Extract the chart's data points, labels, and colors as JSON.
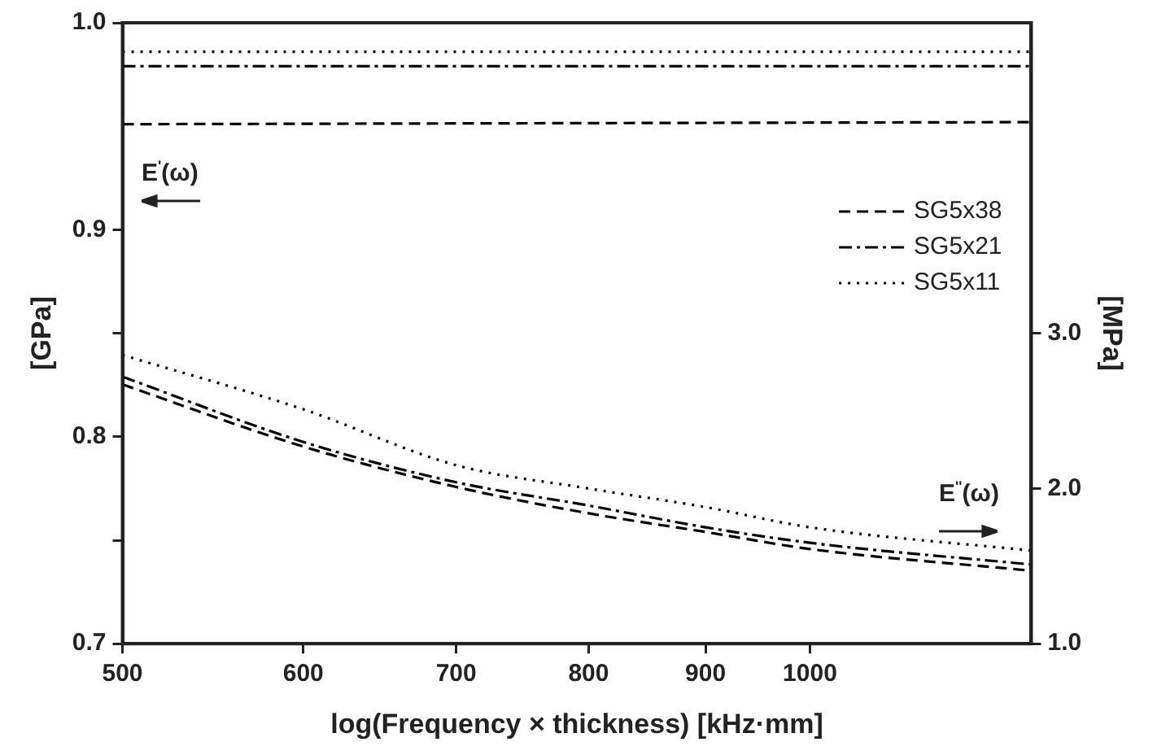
{
  "chart_data": {
    "type": "line",
    "xlabel": "log(Frequency × thickness) [kHz·mm]",
    "ylabel": "[GPa]",
    "y2label": "[MPa]",
    "log": "x",
    "xlim": [
      500,
      1250
    ],
    "xticks": [
      500,
      600,
      700,
      800,
      900,
      1000
    ],
    "ylim": [
      0.7,
      1.0
    ],
    "yticks": [
      {
        "value": 0.7,
        "label": "0.7"
      },
      {
        "value": 0.75,
        "label": null
      },
      {
        "value": 0.8,
        "label": "0.8"
      },
      {
        "value": 0.85,
        "label": null
      },
      {
        "value": 0.9,
        "label": "0.9"
      },
      {
        "value": 1.0,
        "label": "1.0"
      }
    ],
    "y2lim": [
      1,
      5
    ],
    "y2ticks": [
      {
        "value": 1,
        "label": "1.0"
      },
      {
        "value": 2,
        "label": "2.0"
      },
      {
        "value": 3,
        "label": "3.0"
      }
    ],
    "grid": false,
    "legend": "top right",
    "marker": "none",
    "annotations": [
      "E$^{'}$(ω)",
      "E$^{''}$(ω)"
    ],
    "series": [
      {
        "name": "SG5x38",
        "color": "#000000",
        "line_style": "dashed",
        "x": [
          500,
          1250
        ],
        "values": [
          0.951,
          0.952
        ]
      },
      {
        "name": "SG5x21",
        "color": "#000000",
        "line_style": "dashdot",
        "x": [
          500,
          1250
        ],
        "values": [
          0.979,
          0.979
        ]
      },
      {
        "name": "SG5x11",
        "color": "#000000",
        "line_style": "dotted",
        "x": [
          500,
          1250
        ],
        "values": [
          0.986,
          0.986
        ]
      },
      {
        "color": "#000000",
        "line_style": "dashed",
        "axis": "y2",
        "x": [
          500,
          600,
          700,
          800,
          900,
          1000,
          1250
        ],
        "values": [
          2.67,
          2.27,
          2.01,
          1.84,
          1.72,
          1.61,
          1.47
        ]
      },
      {
        "color": "#000000",
        "line_style": "dashdot",
        "axis": "y2",
        "x": [
          500,
          600,
          700,
          800,
          900,
          1000,
          1250
        ],
        "values": [
          2.72,
          2.3,
          2.04,
          1.89,
          1.75,
          1.65,
          1.51
        ]
      },
      {
        "color": "#000000",
        "line_style": "dotted",
        "axis": "y2",
        "x": [
          500,
          600,
          700,
          800,
          900,
          1000,
          1250
        ],
        "values": [
          2.86,
          2.51,
          2.15,
          2.0,
          1.88,
          1.75,
          1.6
        ]
      }
    ]
  }
}
